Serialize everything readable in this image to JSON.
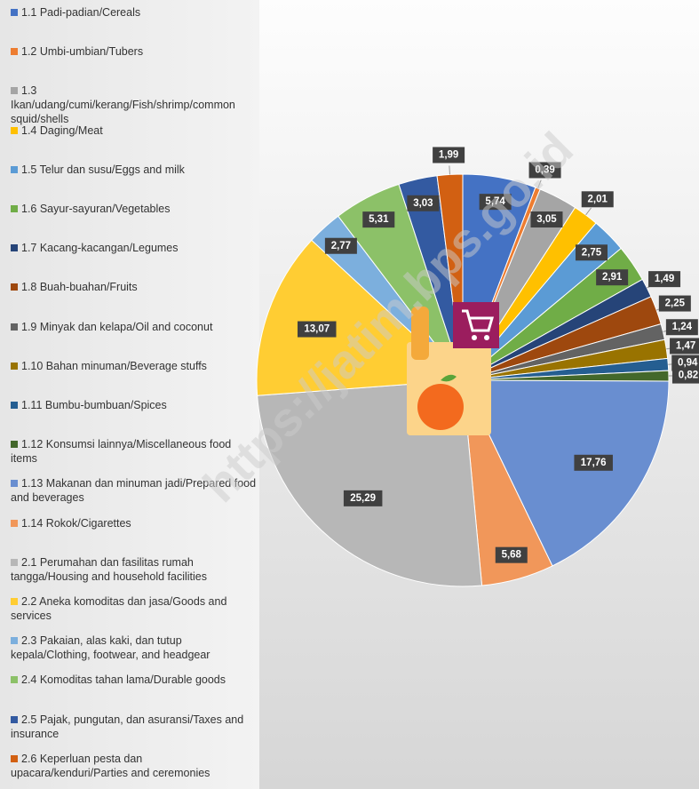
{
  "chart_data": {
    "type": "pie",
    "watermark": "https://jatim.bps.go.id",
    "categories": [
      "1.1 Padi-padian/Cereals",
      "1.2 Umbi-umbian/Tubers",
      "1.3 Ikan/udang/cumi/kerang/Fish/shrimp/common squid/shells",
      "1.4 Daging/Meat",
      "1.5 Telur dan susu/Eggs and milk",
      "1.6 Sayur-sayuran/Vegetables",
      "1.7 Kacang-kacangan/Legumes",
      "1.8 Buah-buahan/Fruits",
      "1.9 Minyak dan kelapa/Oil and coconut",
      "1.10 Bahan minuman/Beverage stuffs",
      "1.11 Bumbu-bumbuan/Spices",
      "1.12 Konsumsi lainnya/Miscellaneous food items",
      "1.13 Makanan dan minuman jadi/Prepared food and beverages",
      "1.14 Rokok/Cigarettes",
      "2.1 Perumahan dan fasilitas rumah tangga/Housing and household facilities",
      "2.2 Aneka komoditas dan jasa/Goods and services",
      "2.3 Pakaian, alas kaki, dan tutup kepala/Clothing, footwear, and headgear",
      "2.4 Komoditas tahan lama/Durable goods",
      "2.5 Pajak, pungutan, dan asuransi/Taxes and insurance",
      "2.6 Keperluan pesta dan upacara/kenduri/Parties and ceremonies"
    ],
    "values": [
      5.74,
      0.39,
      3.05,
      2.01,
      2.75,
      2.91,
      1.49,
      2.25,
      1.24,
      1.47,
      0.94,
      0.82,
      17.76,
      5.68,
      25.29,
      13.07,
      2.77,
      5.31,
      3.03,
      1.99
    ],
    "value_labels": [
      "5,74",
      "0,39",
      "3,05",
      "2,01",
      "2,75",
      "2,91",
      "1,49",
      "2,25",
      "1,24",
      "1,47",
      "0,94",
      "0,82",
      "17,76",
      "5,68",
      "25,29",
      "13,07",
      "2,77",
      "5,31",
      "3,03",
      "1,99"
    ],
    "colors": [
      "#4472c4",
      "#ed7d31",
      "#a5a5a5",
      "#ffc000",
      "#5b9bd5",
      "#70ad47",
      "#264478",
      "#9e480e",
      "#636363",
      "#997300",
      "#255e91",
      "#43682b",
      "#698ed0",
      "#f1975a",
      "#b7b7b7",
      "#ffcd33",
      "#7cafdd",
      "#8cc168",
      "#335aa1",
      "#d26012"
    ]
  }
}
